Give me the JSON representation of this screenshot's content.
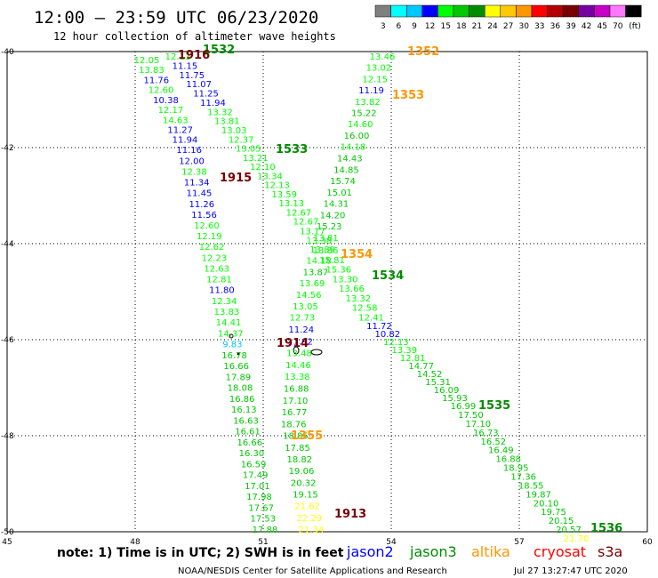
{
  "header": {
    "title": "12:00 – 23:59 UTC 06/23/2020",
    "subtitle": "12 hour collection of altimeter wave heights"
  },
  "legend": {
    "unit": "(ft)",
    "bins": [
      {
        "label": "3",
        "color": "#7f7f7f"
      },
      {
        "label": "6",
        "color": "#00ffff"
      },
      {
        "label": "9",
        "color": "#00c8ff"
      },
      {
        "label": "12",
        "color": "#0000ff"
      },
      {
        "label": "15",
        "color": "#00ff00"
      },
      {
        "label": "18",
        "color": "#00c800"
      },
      {
        "label": "21",
        "color": "#008c00"
      },
      {
        "label": "24",
        "color": "#ffff00"
      },
      {
        "label": "27",
        "color": "#ffc800"
      },
      {
        "label": "30",
        "color": "#ff9600"
      },
      {
        "label": "33",
        "color": "#ff0000"
      },
      {
        "label": "36",
        "color": "#b40000"
      },
      {
        "label": "39",
        "color": "#780000"
      },
      {
        "label": "42",
        "color": "#7800a0"
      },
      {
        "label": "45",
        "color": "#c800c8"
      },
      {
        "label": "70",
        "color": "#ff78ff"
      },
      {
        "label": "",
        "color": "#000000"
      }
    ]
  },
  "axes": {
    "lon_ticks": [
      "45",
      "48",
      "51",
      "54",
      "57",
      "60"
    ],
    "lat_ticks": [
      "-40",
      "-42",
      "-44",
      "-46",
      "-48",
      "-50"
    ],
    "lon_range": [
      45,
      60
    ],
    "lat_range": [
      -40,
      -50
    ]
  },
  "passes": [
    {
      "id": "1532",
      "color": "#008c00"
    },
    {
      "id": "1533",
      "color": "#008c00"
    },
    {
      "id": "1534",
      "color": "#008c00"
    },
    {
      "id": "1535",
      "color": "#008c00"
    },
    {
      "id": "1536",
      "color": "#008c00"
    },
    {
      "id": "1352",
      "color": "#ff9600"
    },
    {
      "id": "1353",
      "color": "#ff9600"
    },
    {
      "id": "1354",
      "color": "#ff9600"
    },
    {
      "id": "1355",
      "color": "#ff9600"
    },
    {
      "id": "1913",
      "color": "#780000"
    },
    {
      "id": "1914",
      "color": "#780000"
    },
    {
      "id": "1915",
      "color": "#780000"
    },
    {
      "id": "1916",
      "color": "#780000"
    }
  ],
  "tracks": {
    "t1": {
      "values": [
        "12.05",
        "13.83",
        "11.76",
        "12.60",
        "10.38",
        "12.17",
        "14.63",
        "11.27",
        "11.94",
        "11.16",
        "12.00",
        "12.38",
        "11.34",
        "11.45",
        "11.26",
        "11.56",
        "12.60",
        "12.19",
        "12.62",
        "12.23",
        "12.63",
        "12.81",
        "11.80",
        "12.34",
        "13.83",
        "14.41",
        "14.37",
        "9.83",
        "16.78",
        "16.66",
        "17.89",
        "18.08",
        "16.86",
        "16.13",
        "16.63",
        "16.61",
        "16.66",
        "16.30",
        "16.59",
        "17.49",
        "17.01",
        "17.98",
        "17.67",
        "17.53",
        "17.88"
      ],
      "colors": [
        "#00ff00",
        "#00ff00",
        "#0000ff",
        "#00ff00",
        "#0000ff",
        "#00ff00",
        "#00ff00",
        "#0000ff",
        "#0000ff",
        "#0000ff",
        "#0000ff",
        "#00ff00",
        "#0000ff",
        "#0000ff",
        "#0000ff",
        "#0000ff",
        "#00ff00",
        "#00ff00",
        "#00ff00",
        "#00ff00",
        "#00ff00",
        "#00ff00",
        "#0000ff",
        "#00ff00",
        "#00ff00",
        "#00ff00",
        "#00ff00",
        "#00c8ff",
        "#00c800",
        "#00c800",
        "#00c800",
        "#00c800",
        "#00c800",
        "#00c800",
        "#00c800",
        "#00c800",
        "#00c800",
        "#00c800",
        "#00c800",
        "#00c800",
        "#00c800",
        "#00c800",
        "#00c800",
        "#00c800",
        "#00c800"
      ]
    },
    "t2": {
      "values": [
        "12.13",
        "11.15",
        "11.75",
        "11.07",
        "11.25",
        "11.94",
        "13.32",
        "13.81",
        "13.03",
        "12.37",
        "13.05",
        "13.21",
        "12.10",
        "13.34",
        "12.13",
        "13.59",
        "13.13",
        "12.67",
        "12.67",
        "13.17",
        "13.38",
        "13.86",
        "15.81",
        "15.36",
        "13.30",
        "13.66",
        "13.32",
        "12.58",
        "12.41",
        "11.72",
        "10.82",
        "12.13",
        "13.39",
        "12.81",
        "14.77",
        "14.52",
        "15.31",
        "16.09",
        "15.93",
        "16.99",
        "17.50",
        "17.10",
        "16.73",
        "16.52",
        "16.49",
        "16.88",
        "18.95",
        "17.36",
        "18.55",
        "19.87",
        "20.10",
        "19.75",
        "20.15",
        "20.57",
        "21.70"
      ],
      "colors": [
        "#00ff00",
        "#0000ff",
        "#0000ff",
        "#0000ff",
        "#0000ff",
        "#0000ff",
        "#00ff00",
        "#00ff00",
        "#00ff00",
        "#00ff00",
        "#00ff00",
        "#00ff00",
        "#00ff00",
        "#00ff00",
        "#00ff00",
        "#00ff00",
        "#00ff00",
        "#00ff00",
        "#00ff00",
        "#00ff00",
        "#00ff00",
        "#00ff00",
        "#00ff00",
        "#00ff00",
        "#00ff00",
        "#00ff00",
        "#00ff00",
        "#00ff00",
        "#00ff00",
        "#0000ff",
        "#0000ff",
        "#00ff00",
        "#00ff00",
        "#00ff00",
        "#00c800",
        "#00c800",
        "#00c800",
        "#00c800",
        "#00c800",
        "#00c800",
        "#00c800",
        "#00c800",
        "#00c800",
        "#00c800",
        "#00c800",
        "#00c800",
        "#00c800",
        "#00c800",
        "#00c800",
        "#00c800",
        "#00c800",
        "#00c800",
        "#00c800",
        "#00c800",
        "#ffff00"
      ]
    },
    "t3": {
      "values": [
        "13.46",
        "13.02",
        "12.15",
        "11.19",
        "13.82",
        "15.22",
        "14.60",
        "16.00",
        "14.18",
        "14.43",
        "14.85",
        "15.74",
        "15.01",
        "14.31",
        "14.20",
        "15.23",
        "13.81",
        "13.89",
        "14.18",
        "13.87",
        "13.69",
        "14.56",
        "13.05",
        "12.73",
        "11.24",
        "11.92",
        "13.48",
        "14.46",
        "13.38",
        "16.88",
        "17.10",
        "16.77",
        "18.76",
        "18.85",
        "17.85",
        "18.82",
        "19.06",
        "20.32",
        "19.15",
        "21.62",
        "22.29",
        "21.34"
      ],
      "colors": [
        "#00ff00",
        "#00ff00",
        "#00ff00",
        "#0000ff",
        "#00ff00",
        "#00c800",
        "#00ff00",
        "#00c800",
        "#00ff00",
        "#00c800",
        "#00c800",
        "#00c800",
        "#00c800",
        "#00c800",
        "#00c800",
        "#00c800",
        "#00ff00",
        "#00ff00",
        "#00ff00",
        "#00c800",
        "#00ff00",
        "#00ff00",
        "#00ff00",
        "#00ff00",
        "#0000ff",
        "#0000ff",
        "#00ff00",
        "#00ff00",
        "#00ff00",
        "#00c800",
        "#00c800",
        "#00c800",
        "#00c800",
        "#00c800",
        "#00c800",
        "#00c800",
        "#00c800",
        "#00c800",
        "#00c800",
        "#ffff00",
        "#ffff00",
        "#ffff00"
      ]
    }
  },
  "footer": {
    "note": "note:  1) Time is in UTC; 2) SWH is in feet",
    "credit": "NOAA/NESDIS Center for Satellite Applications and Research",
    "timestamp": "Jul 27 13:27:47 UTC 2020",
    "missions": [
      {
        "label": "jason2",
        "color": "#0000ff"
      },
      {
        "label": "jason3",
        "color": "#008c00"
      },
      {
        "label": "altika",
        "color": "#ff9600"
      },
      {
        "label": "cryosat",
        "color": "#ff0000"
      },
      {
        "label": "s3a",
        "color": "#780000"
      }
    ]
  }
}
